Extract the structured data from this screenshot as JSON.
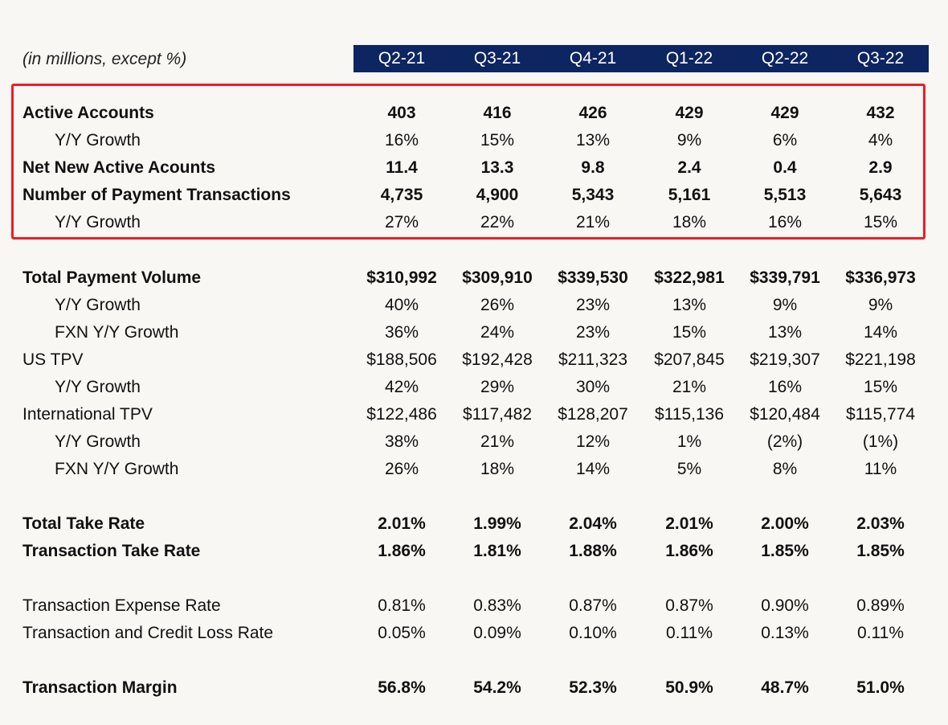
{
  "unit_note": "(in millions, except %)",
  "columns": [
    "Q2-21",
    "Q3-21",
    "Q4-21",
    "Q1-22",
    "Q2-22",
    "Q3-22"
  ],
  "rows": [
    {
      "label": "Active Accounts",
      "bold": true,
      "indent": false,
      "values": [
        "403",
        "416",
        "426",
        "429",
        "429",
        "432"
      ]
    },
    {
      "label": "Y/Y Growth",
      "bold": false,
      "indent": true,
      "values": [
        "16%",
        "15%",
        "13%",
        "9%",
        "6%",
        "4%"
      ]
    },
    {
      "label": "Net New Active Acounts",
      "bold": true,
      "indent": false,
      "values": [
        "11.4",
        "13.3",
        "9.8",
        "2.4",
        "0.4",
        "2.9"
      ]
    },
    {
      "label": "Number of Payment Transactions",
      "bold": true,
      "indent": false,
      "values": [
        "4,735",
        "4,900",
        "5,343",
        "5,161",
        "5,513",
        "5,643"
      ]
    },
    {
      "label": "Y/Y Growth",
      "bold": false,
      "indent": true,
      "values": [
        "27%",
        "22%",
        "21%",
        "18%",
        "16%",
        "15%"
      ]
    },
    {
      "label": "Total Payment Volume",
      "bold": true,
      "indent": false,
      "values": [
        "$310,992",
        "$309,910",
        "$339,530",
        "$322,981",
        "$339,791",
        "$336,973"
      ]
    },
    {
      "label": "Y/Y Growth",
      "bold": false,
      "indent": true,
      "values": [
        "40%",
        "26%",
        "23%",
        "13%",
        "9%",
        "9%"
      ]
    },
    {
      "label": "FXN Y/Y Growth",
      "bold": false,
      "indent": true,
      "values": [
        "36%",
        "24%",
        "23%",
        "15%",
        "13%",
        "14%"
      ]
    },
    {
      "label": "US TPV",
      "bold": false,
      "indent": false,
      "values": [
        "$188,506",
        "$192,428",
        "$211,323",
        "$207,845",
        "$219,307",
        "$221,198"
      ]
    },
    {
      "label": "Y/Y Growth",
      "bold": false,
      "indent": true,
      "values": [
        "42%",
        "29%",
        "30%",
        "21%",
        "16%",
        "15%"
      ]
    },
    {
      "label": "International TPV",
      "bold": false,
      "indent": false,
      "values": [
        "$122,486",
        "$117,482",
        "$128,207",
        "$115,136",
        "$120,484",
        "$115,774"
      ]
    },
    {
      "label": "Y/Y Growth",
      "bold": false,
      "indent": true,
      "values": [
        "38%",
        "21%",
        "12%",
        "1%",
        "(2%)",
        "(1%)"
      ]
    },
    {
      "label": "FXN Y/Y Growth",
      "bold": false,
      "indent": true,
      "values": [
        "26%",
        "18%",
        "14%",
        "5%",
        "8%",
        "11%"
      ]
    },
    {
      "label": "Total Take Rate",
      "bold": true,
      "indent": false,
      "values": [
        "2.01%",
        "1.99%",
        "2.04%",
        "2.01%",
        "2.00%",
        "2.03%"
      ]
    },
    {
      "label": "Transaction Take Rate",
      "bold": true,
      "indent": false,
      "values": [
        "1.86%",
        "1.81%",
        "1.88%",
        "1.86%",
        "1.85%",
        "1.85%"
      ]
    },
    {
      "label": "Transaction Expense Rate",
      "bold": false,
      "indent": false,
      "values": [
        "0.81%",
        "0.83%",
        "0.87%",
        "0.87%",
        "0.90%",
        "0.89%"
      ]
    },
    {
      "label": "Transaction and Credit Loss Rate",
      "bold": false,
      "indent": false,
      "values": [
        "0.05%",
        "0.09%",
        "0.10%",
        "0.11%",
        "0.13%",
        "0.11%"
      ]
    },
    {
      "label": "Transaction Margin",
      "bold": true,
      "indent": false,
      "values": [
        "56.8%",
        "54.2%",
        "52.3%",
        "50.9%",
        "48.7%",
        "51.0%"
      ]
    }
  ],
  "colors": {
    "header_bg": "#0d2560",
    "highlight_border": "#ee1c25",
    "page_bg": "#f9f7f4"
  }
}
